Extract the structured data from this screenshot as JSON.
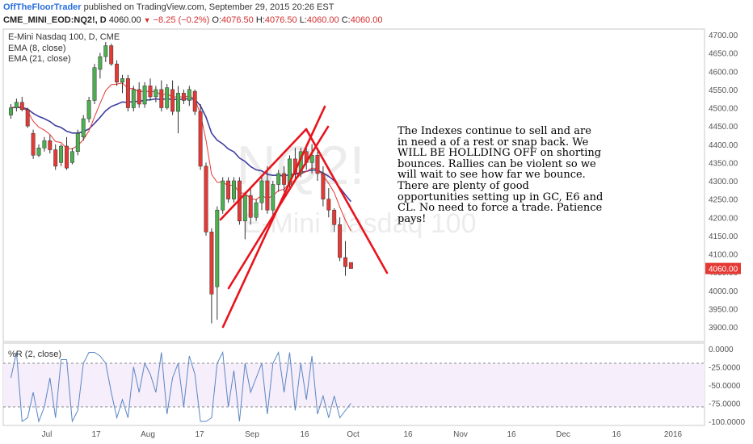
{
  "header": {
    "brand": "OffTheFloorTrader",
    "published_text": " published on TradingView.com, September 29, 2015 20:26 EST",
    "symbol": "CME_MINI_EOD:NQ2!, D",
    "last": "4060.00",
    "change": "−8.25 (−0.2%)",
    "o_label": "O:",
    "o_value": "4076.50",
    "h_label": "H:",
    "h_value": "4076.50",
    "l_label": "L:",
    "l_value": "4060.00",
    "c_label": "C:",
    "c_value": "4060.00"
  },
  "legend": {
    "title": "E-Mini Nasdaq 100, D, CME",
    "ema8": "EMA (8, close)",
    "ema21": "EMA (21, close)",
    "wr": "%R (2, close)"
  },
  "watermark": {
    "symbol": "NQ2!",
    "name": "E-Mini Nasdaq 100"
  },
  "annotation": "The Indexes continue to sell and are in need a of a rest or snap back.  We WILL BE HOLLDING OFF on shorting bounces.  Rallies can be violent so we will wait to see how far we bounce.  There are plenty of good opportunities setting up in GC, E6 and CL.  No need to force a trade.  Patience pays!",
  "colors": {
    "up": "#4caf50",
    "down": "#e53935",
    "ema8": "#e53935",
    "ema21": "#3f3fa0",
    "wr": "#5b86c5",
    "annotation_lines": "#e8141c",
    "price_tag": "#e53935"
  },
  "chart_data": {
    "type": "candlestick",
    "y_axis_ticks": [
      "4700.00",
      "4650.00",
      "4600.00",
      "4550.00",
      "4500.00",
      "4450.00",
      "4400.00",
      "4350.00",
      "4300.00",
      "4250.00",
      "4200.00",
      "4150.00",
      "4100.00",
      "4050.00",
      "4000.00",
      "3950.00",
      "3900.00"
    ],
    "price_tag": "4060.00",
    "ylim": [
      3875,
      4712
    ],
    "x_axis_labels": [
      "Jul",
      "17",
      "Aug",
      "17",
      "Sep",
      "16",
      "Oct",
      "16",
      "Nov",
      "16",
      "Dec",
      "16",
      "2016"
    ],
    "candles": [
      {
        "o": 4480,
        "h": 4510,
        "l": 4470,
        "c": 4500
      },
      {
        "o": 4500,
        "h": 4525,
        "l": 4490,
        "c": 4515
      },
      {
        "o": 4515,
        "h": 4530,
        "l": 4490,
        "c": 4495
      },
      {
        "o": 4495,
        "h": 4500,
        "l": 4445,
        "c": 4450
      },
      {
        "o": 4430,
        "h": 4440,
        "l": 4360,
        "c": 4370
      },
      {
        "o": 4370,
        "h": 4400,
        "l": 4365,
        "c": 4390
      },
      {
        "o": 4390,
        "h": 4420,
        "l": 4380,
        "c": 4410
      },
      {
        "o": 4410,
        "h": 4425,
        "l": 4375,
        "c": 4385
      },
      {
        "o": 4385,
        "h": 4400,
        "l": 4330,
        "c": 4340
      },
      {
        "o": 4350,
        "h": 4400,
        "l": 4340,
        "c": 4395
      },
      {
        "o": 4395,
        "h": 4420,
        "l": 4330,
        "c": 4335
      },
      {
        "o": 4350,
        "h": 4390,
        "l": 4345,
        "c": 4380
      },
      {
        "o": 4380,
        "h": 4440,
        "l": 4370,
        "c": 4430
      },
      {
        "o": 4420,
        "h": 4480,
        "l": 4410,
        "c": 4470
      },
      {
        "o": 4470,
        "h": 4530,
        "l": 4460,
        "c": 4520
      },
      {
        "o": 4520,
        "h": 4620,
        "l": 4510,
        "c": 4610
      },
      {
        "o": 4605,
        "h": 4650,
        "l": 4580,
        "c": 4640
      },
      {
        "o": 4640,
        "h": 4680,
        "l": 4625,
        "c": 4670
      },
      {
        "o": 4670,
        "h": 4675,
        "l": 4615,
        "c": 4620
      },
      {
        "o": 4620,
        "h": 4630,
        "l": 4560,
        "c": 4570
      },
      {
        "o": 4570,
        "h": 4590,
        "l": 4540,
        "c": 4580
      },
      {
        "o": 4580,
        "h": 4590,
        "l": 4490,
        "c": 4500
      },
      {
        "o": 4500,
        "h": 4560,
        "l": 4490,
        "c": 4550
      },
      {
        "o": 4550,
        "h": 4570,
        "l": 4500,
        "c": 4510
      },
      {
        "o": 4510,
        "h": 4570,
        "l": 4500,
        "c": 4560
      },
      {
        "o": 4560,
        "h": 4580,
        "l": 4520,
        "c": 4530
      },
      {
        "o": 4530,
        "h": 4560,
        "l": 4515,
        "c": 4550
      },
      {
        "o": 4550,
        "h": 4575,
        "l": 4490,
        "c": 4500
      },
      {
        "o": 4500,
        "h": 4565,
        "l": 4495,
        "c": 4555
      },
      {
        "o": 4550,
        "h": 4575,
        "l": 4480,
        "c": 4490
      },
      {
        "o": 4490,
        "h": 4560,
        "l": 4430,
        "c": 4540
      },
      {
        "o": 4540,
        "h": 4550,
        "l": 4510,
        "c": 4520
      },
      {
        "o": 4520,
        "h": 4560,
        "l": 4505,
        "c": 4550
      },
      {
        "o": 4545,
        "h": 4550,
        "l": 4480,
        "c": 4490
      },
      {
        "o": 4490,
        "h": 4510,
        "l": 4330,
        "c": 4340
      },
      {
        "o": 4340,
        "h": 4350,
        "l": 4150,
        "c": 4160
      },
      {
        "o": 4160,
        "h": 4170,
        "l": 3910,
        "c": 3990
      },
      {
        "o": 4010,
        "h": 4230,
        "l": 3920,
        "c": 4220
      },
      {
        "o": 4220,
        "h": 4310,
        "l": 4210,
        "c": 4300
      },
      {
        "o": 4300,
        "h": 4310,
        "l": 4240,
        "c": 4250
      },
      {
        "o": 4250,
        "h": 4310,
        "l": 4240,
        "c": 4300
      },
      {
        "o": 4300,
        "h": 4310,
        "l": 4180,
        "c": 4190
      },
      {
        "o": 4190,
        "h": 4270,
        "l": 4140,
        "c": 4260
      },
      {
        "o": 4260,
        "h": 4280,
        "l": 4180,
        "c": 4200
      },
      {
        "o": 4200,
        "h": 4250,
        "l": 4190,
        "c": 4240
      },
      {
        "o": 4240,
        "h": 4310,
        "l": 4220,
        "c": 4300
      },
      {
        "o": 4300,
        "h": 4340,
        "l": 4210,
        "c": 4220
      },
      {
        "o": 4220,
        "h": 4300,
        "l": 4200,
        "c": 4290
      },
      {
        "o": 4290,
        "h": 4330,
        "l": 4270,
        "c": 4320
      },
      {
        "o": 4320,
        "h": 4340,
        "l": 4270,
        "c": 4290
      },
      {
        "o": 4290,
        "h": 4370,
        "l": 4280,
        "c": 4360
      },
      {
        "o": 4360,
        "h": 4390,
        "l": 4300,
        "c": 4320
      },
      {
        "o": 4320,
        "h": 4390,
        "l": 4310,
        "c": 4380
      },
      {
        "o": 4380,
        "h": 4400,
        "l": 4330,
        "c": 4350
      },
      {
        "o": 4350,
        "h": 4400,
        "l": 4320,
        "c": 4370
      },
      {
        "o": 4370,
        "h": 4380,
        "l": 4300,
        "c": 4320
      },
      {
        "o": 4320,
        "h": 4340,
        "l": 4230,
        "c": 4250
      },
      {
        "o": 4250,
        "h": 4280,
        "l": 4200,
        "c": 4220
      },
      {
        "o": 4220,
        "h": 4225,
        "l": 4160,
        "c": 4180
      },
      {
        "o": 4180,
        "h": 4200,
        "l": 4080,
        "c": 4090
      },
      {
        "o": 4090,
        "h": 4135,
        "l": 4040,
        "c": 4065
      },
      {
        "o": 4076.5,
        "h": 4076.5,
        "l": 4060,
        "c": 4060
      }
    ],
    "williams_r": {
      "name": "%R (2, close)",
      "y_axis_ticks": [
        "0.0000",
        "-25.0000",
        "-50.0000",
        "-75.0000",
        "-100.0000"
      ],
      "ylim": [
        -100,
        0
      ],
      "levels": [
        -20,
        -80
      ],
      "values": [
        -40,
        -5,
        -100,
        -95,
        -60,
        -100,
        -80,
        -40,
        -95,
        -15,
        -15,
        -100,
        -85,
        -20,
        -5,
        -5,
        -10,
        -20,
        -60,
        -95,
        -70,
        -95,
        -25,
        -60,
        -20,
        -35,
        -60,
        -5,
        -90,
        -40,
        -20,
        -80,
        -10,
        -35,
        -100,
        -100,
        -95,
        -20,
        -5,
        -80,
        -30,
        -100,
        -20,
        -60,
        -40,
        -20,
        -90,
        -20,
        -5,
        -60,
        -5,
        -85,
        -20,
        -70,
        -10,
        -90,
        -65,
        -95,
        -65,
        -95,
        -85,
        -75
      ]
    }
  }
}
